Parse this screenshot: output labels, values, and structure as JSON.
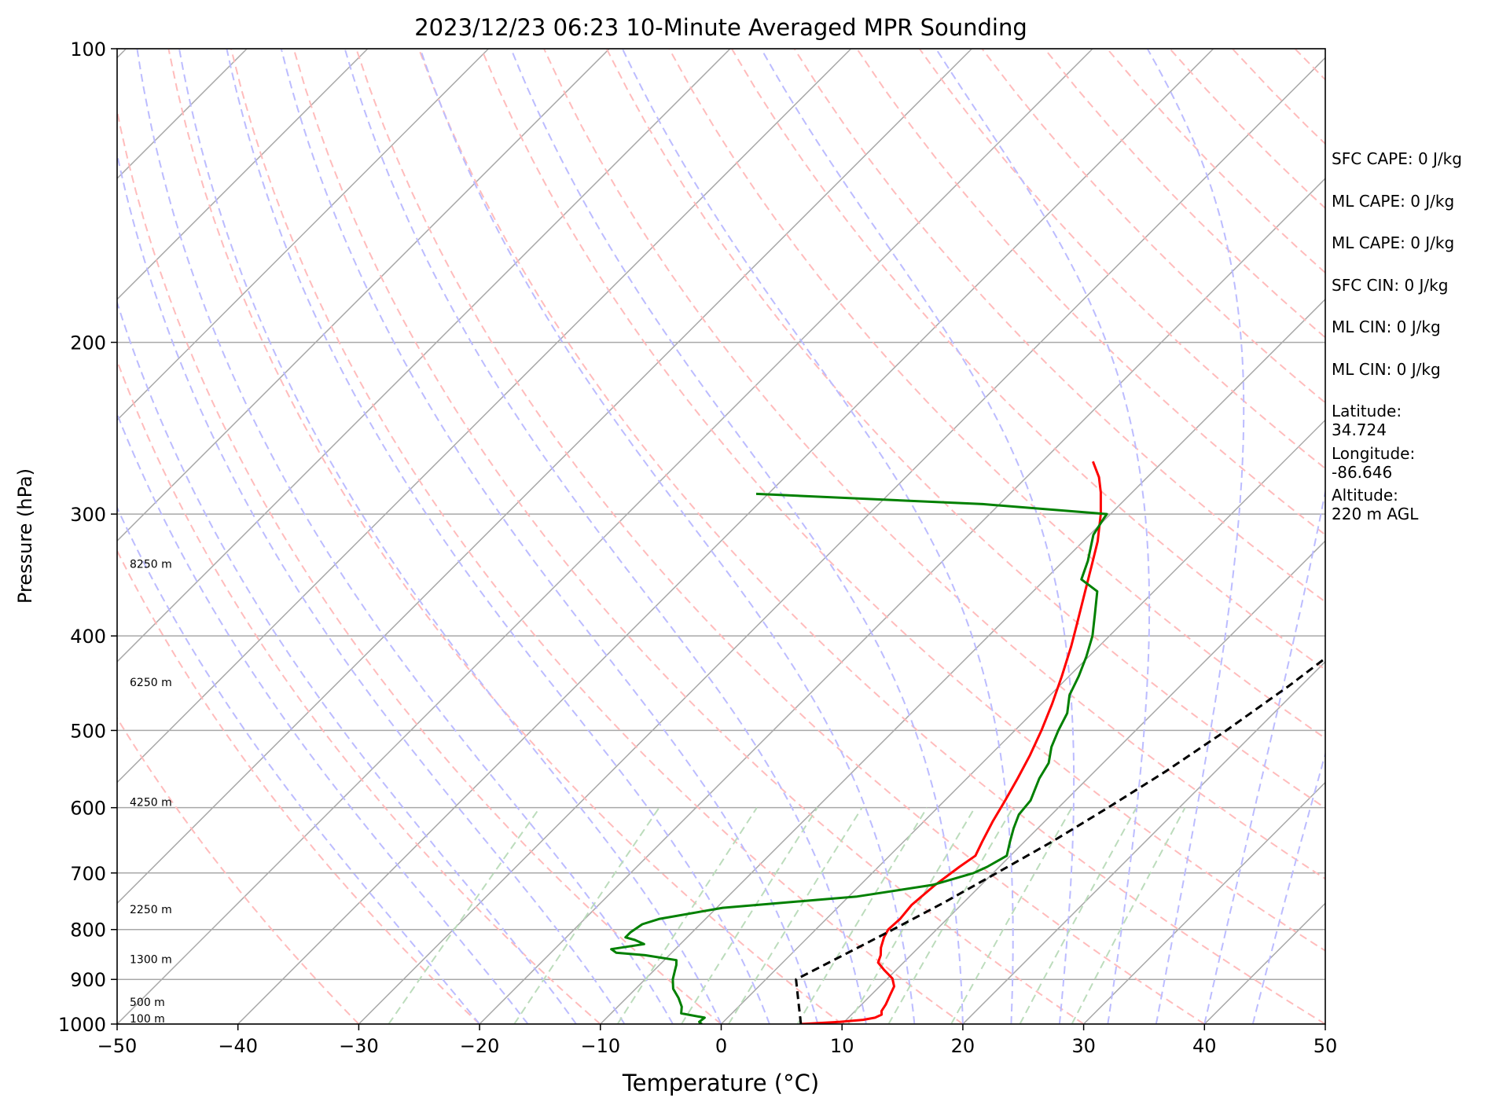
{
  "chart_data": {
    "type": "line",
    "title": "2023/12/23 06:23 10-Minute Averaged MPR Sounding",
    "xlabel": "Temperature (°C)",
    "ylabel": "Pressure (hPa)",
    "xlim": [
      -50,
      50
    ],
    "ylim": [
      1000,
      100
    ],
    "y_scale": "log",
    "x_ticks": [
      -50,
      -40,
      -30,
      -20,
      -10,
      0,
      10,
      20,
      30,
      40,
      50
    ],
    "x_tick_labels": [
      "−50",
      "−40",
      "−30",
      "−20",
      "−10",
      "0",
      "10",
      "20",
      "30",
      "40",
      "50"
    ],
    "y_ticks": [
      100,
      200,
      300,
      400,
      500,
      600,
      700,
      800,
      900,
      1000
    ],
    "y_tick_labels": [
      "100",
      "200",
      "300",
      "400",
      "500",
      "600",
      "700",
      "800",
      "900",
      "1000"
    ],
    "isobar_grid": true,
    "isotherm_grid": "skewed",
    "colors": {
      "temperature": "#ff0000",
      "dewpoint": "#008000",
      "parcel": "#000000",
      "isotherm": "#a8a8a8",
      "isobar": "#a8a8a8",
      "dry_adiabat": "#ffbcbc",
      "moist_adiabat": "#bcbcff",
      "mixing_ratio": "#bcdcbc"
    },
    "series": [
      {
        "key": "temperature",
        "style": "solid",
        "points": [
          [
            1000,
            6.6
          ],
          [
            995,
            9.6
          ],
          [
            990,
            11.4
          ],
          [
            985,
            12.2
          ],
          [
            978,
            12.5
          ],
          [
            970,
            12.2
          ],
          [
            955,
            12.0
          ],
          [
            935,
            11.6
          ],
          [
            915,
            11.2
          ],
          [
            898,
            10.4
          ],
          [
            880,
            9.0
          ],
          [
            865,
            7.9
          ],
          [
            850,
            7.5
          ],
          [
            835,
            6.9
          ],
          [
            815,
            6.3
          ],
          [
            800,
            6.0
          ],
          [
            780,
            6.1
          ],
          [
            755,
            5.9
          ],
          [
            720,
            6.2
          ],
          [
            690,
            6.7
          ],
          [
            672,
            7.1
          ],
          [
            650,
            6.5
          ],
          [
            620,
            5.7
          ],
          [
            590,
            5.0
          ],
          [
            560,
            4.2
          ],
          [
            530,
            3.3
          ],
          [
            500,
            2.2
          ],
          [
            470,
            0.9
          ],
          [
            440,
            -0.6
          ],
          [
            410,
            -2.3
          ],
          [
            390,
            -3.6
          ],
          [
            360,
            -5.7
          ],
          [
            340,
            -7.2
          ],
          [
            320,
            -8.8
          ],
          [
            300,
            -10.8
          ],
          [
            285,
            -12.6
          ],
          [
            275,
            -14.0
          ],
          [
            265,
            -15.8
          ]
        ]
      },
      {
        "key": "dewpoint",
        "style": "solid",
        "points": [
          [
            1000,
            -1.6
          ],
          [
            995,
            -2.0
          ],
          [
            985,
            -1.9
          ],
          [
            975,
            -4.2
          ],
          [
            960,
            -4.7
          ],
          [
            940,
            -5.7
          ],
          [
            920,
            -6.9
          ],
          [
            900,
            -7.7
          ],
          [
            880,
            -8.3
          ],
          [
            870,
            -8.6
          ],
          [
            860,
            -9.0
          ],
          [
            850,
            -12.0
          ],
          [
            845,
            -14.6
          ],
          [
            838,
            -15.3
          ],
          [
            828,
            -13.0
          ],
          [
            820,
            -14.1
          ],
          [
            815,
            -15.1
          ],
          [
            805,
            -15.1
          ],
          [
            790,
            -14.8
          ],
          [
            780,
            -13.8
          ],
          [
            760,
            -9.5
          ],
          [
            740,
            0.7
          ],
          [
            720,
            6.0
          ],
          [
            700,
            8.4
          ],
          [
            690,
            9.0
          ],
          [
            680,
            9.4
          ],
          [
            672,
            9.7
          ],
          [
            650,
            8.8
          ],
          [
            630,
            8.0
          ],
          [
            610,
            7.3
          ],
          [
            590,
            7.1
          ],
          [
            560,
            6.0
          ],
          [
            540,
            5.5
          ],
          [
            520,
            4.4
          ],
          [
            500,
            3.6
          ],
          [
            480,
            2.9
          ],
          [
            460,
            1.6
          ],
          [
            440,
            0.8
          ],
          [
            420,
            -0.2
          ],
          [
            400,
            -1.4
          ],
          [
            380,
            -3.0
          ],
          [
            360,
            -4.7
          ],
          [
            350,
            -7.0
          ],
          [
            335,
            -8.0
          ],
          [
            315,
            -9.7
          ],
          [
            303,
            -10.2
          ],
          [
            300,
            -10.3
          ],
          [
            293,
            -21.4
          ],
          [
            286,
            -41.0
          ]
        ]
      },
      {
        "key": "parcel",
        "style": "dashed",
        "points": [
          [
            1000,
            6.6
          ],
          [
            950,
            4.6
          ],
          [
            900,
            2.5
          ],
          [
            850,
            4.4
          ],
          [
            800,
            6.4
          ],
          [
            750,
            8.4
          ],
          [
            700,
            10.3
          ],
          [
            650,
            12.3
          ],
          [
            600,
            14.1
          ],
          [
            550,
            15.9
          ],
          [
            500,
            17.5
          ],
          [
            450,
            19.0
          ],
          [
            400,
            20.3
          ],
          [
            350,
            21.4
          ],
          [
            300,
            22.3
          ],
          [
            260,
            23.0
          ]
        ]
      }
    ],
    "height_labels": [
      {
        "p": 1000,
        "text": "100 m"
      },
      {
        "p": 962,
        "text": "500 m"
      },
      {
        "p": 869,
        "text": "1300 m"
      },
      {
        "p": 773,
        "text": "2250 m"
      },
      {
        "p": 600,
        "text": "4250 m"
      },
      {
        "p": 452,
        "text": "6250 m"
      },
      {
        "p": 342,
        "text": "8250 m"
      }
    ]
  },
  "info_panel": [
    "SFC CAPE: 0 J/kg",
    "ML CAPE: 0 J/kg",
    "ML CAPE: 0 J/kg",
    "SFC CIN: 0 J/kg",
    "ML CIN: 0 J/kg",
    "ML CIN: 0 J/kg",
    "Latitude:\n34.724",
    "Longitude:\n-86.646",
    "Altitude:\n220 m AGL"
  ]
}
